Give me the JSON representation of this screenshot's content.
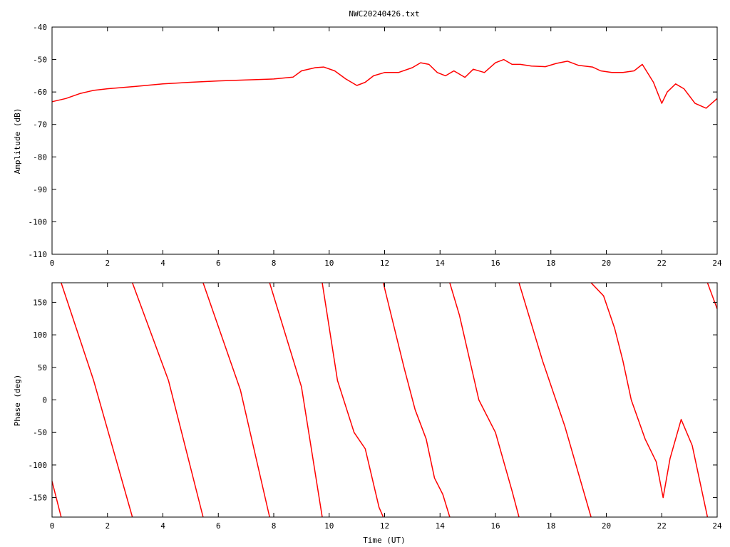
{
  "title": "NWC20240426.txt",
  "colors": {
    "trace": "#ff0000",
    "axis": "#000000",
    "background": "#ffffff"
  },
  "chart_data": [
    {
      "type": "line",
      "ylabel": "Amplitude (dB)",
      "xlabel": "",
      "xlim": [
        0,
        24
      ],
      "ylim": [
        -110,
        -40
      ],
      "xticks": [
        "0",
        "2",
        "4",
        "6",
        "8",
        "10",
        "12",
        "14",
        "16",
        "18",
        "20",
        "22",
        "24"
      ],
      "yticks": [
        "-40",
        "-50",
        "-60",
        "-70",
        "-80",
        "-90",
        "-100",
        "-110"
      ],
      "grid": false,
      "series": [
        {
          "x": [
            0,
            0.5,
            1,
            1.5,
            2,
            3,
            4,
            5,
            6,
            7,
            8,
            8.7,
            9,
            9.5,
            9.8,
            10.2,
            10.6,
            11,
            11.3,
            11.6,
            12,
            12.5,
            13,
            13.3,
            13.6,
            13.9,
            14.2,
            14.5,
            14.9,
            15.2,
            15.6,
            16,
            16.3,
            16.6,
            16.9,
            17.3,
            17.8,
            18.2,
            18.6,
            19,
            19.5,
            19.8,
            20.2,
            20.6,
            21,
            21.3,
            21.7,
            22,
            22.2,
            22.5,
            22.8,
            23.2,
            23.6,
            24
          ],
          "y": [
            -63,
            -62,
            -60.5,
            -59.5,
            -59,
            -58.3,
            -57.5,
            -57,
            -56.6,
            -56.3,
            -56,
            -55.4,
            -53.5,
            -52.5,
            -52.3,
            -53.5,
            -56,
            -58,
            -57,
            -55,
            -54,
            -54,
            -52.5,
            -51,
            -51.5,
            -54,
            -55,
            -53.5,
            -55.5,
            -53,
            -54,
            -51,
            -50,
            -51.5,
            -51.5,
            -52,
            -52.2,
            -51.2,
            -50.5,
            -51.8,
            -52.3,
            -53.5,
            -54,
            -54,
            -53.5,
            -51.5,
            -57,
            -63.5,
            -60,
            -57.5,
            -59,
            -63.5,
            -65,
            -62
          ]
        }
      ]
    },
    {
      "type": "line",
      "ylabel": "Phase (deg)",
      "xlabel": "Time (UT)",
      "xlim": [
        0,
        24
      ],
      "ylim": [
        -180,
        180
      ],
      "xticks": [
        "0",
        "2",
        "4",
        "6",
        "8",
        "10",
        "12",
        "14",
        "16",
        "18",
        "20",
        "22",
        "24"
      ],
      "yticks": [
        "150",
        "100",
        "50",
        "0",
        "-50",
        "-100",
        "-150"
      ],
      "grid": false,
      "series": [
        {
          "segments": [
            [
              [
                0,
                -125
              ],
              [
                0.33,
                -180
              ]
            ],
            [
              [
                0.33,
                180
              ],
              [
                1.5,
                30
              ],
              [
                2.9,
                -180
              ]
            ],
            [
              [
                2.9,
                180
              ],
              [
                4.2,
                30
              ],
              [
                5.45,
                -180
              ]
            ],
            [
              [
                5.45,
                180
              ],
              [
                6.8,
                15
              ],
              [
                7.85,
                -180
              ]
            ],
            [
              [
                7.85,
                180
              ],
              [
                9,
                20
              ],
              [
                9.75,
                -180
              ]
            ],
            [
              [
                9.75,
                180
              ],
              [
                10.3,
                30
              ],
              [
                10.9,
                -50
              ],
              [
                11.3,
                -75
              ],
              [
                11.8,
                -165
              ],
              [
                11.95,
                -180
              ]
            ],
            [
              [
                11.95,
                180
              ],
              [
                12.7,
                50
              ],
              [
                13.1,
                -15
              ],
              [
                13.5,
                -60
              ],
              [
                13.8,
                -120
              ],
              [
                14.1,
                -145
              ],
              [
                14.35,
                -180
              ]
            ],
            [
              [
                14.35,
                180
              ],
              [
                14.7,
                130
              ],
              [
                15.4,
                0
              ],
              [
                16,
                -50
              ],
              [
                16.6,
                -140
              ],
              [
                16.85,
                -180
              ]
            ],
            [
              [
                16.85,
                180
              ],
              [
                17.7,
                60
              ],
              [
                18.5,
                -40
              ],
              [
                19.45,
                -180
              ]
            ],
            [
              [
                19.45,
                180
              ],
              [
                19.9,
                160
              ],
              [
                20.3,
                110
              ],
              [
                20.6,
                60
              ],
              [
                20.9,
                0
              ],
              [
                21.4,
                -60
              ],
              [
                21.8,
                -95
              ],
              [
                22.05,
                -150
              ],
              [
                22.3,
                -90
              ],
              [
                22.7,
                -30
              ],
              [
                23.1,
                -70
              ],
              [
                23.65,
                -180
              ]
            ],
            [
              [
                23.65,
                180
              ],
              [
                24,
                140
              ]
            ]
          ]
        }
      ]
    }
  ]
}
